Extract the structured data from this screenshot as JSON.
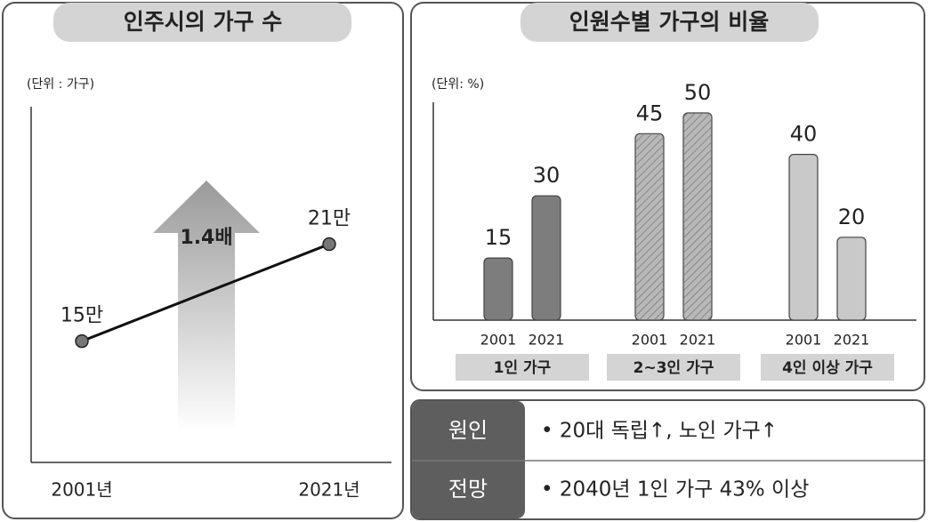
{
  "chart_data": [
    {
      "type": "line",
      "title": "인주시의 가구 수",
      "unit_label": "(단위 : 가구)",
      "categories": [
        "2001년",
        "2021년"
      ],
      "values": [
        150000,
        210000
      ],
      "value_labels": [
        "15만",
        "21만"
      ],
      "annotation": "1.4배",
      "color": "#111111",
      "ylim": [
        75000,
        295000
      ]
    },
    {
      "type": "bar",
      "title": "인원수별 가구의 비율",
      "unit_label": "(단위: %)",
      "categories": [
        "1인 가구",
        "2~3인 가구",
        "4인 이상 가구"
      ],
      "colors": [
        "#7d7d7d",
        "#b8b8b8",
        "#c9c9c9"
      ],
      "series": [
        {
          "name": "2001",
          "values": [
            15,
            45,
            40
          ]
        },
        {
          "name": "2021",
          "values": [
            30,
            50,
            20
          ]
        }
      ],
      "ylim": [
        0,
        50
      ]
    }
  ],
  "table": {
    "rows": [
      {
        "head": "원인",
        "text": "• 20대 독립↑, 노인 가구↑"
      },
      {
        "head": "전망",
        "text": "• 2040년 1인 가구 43% 이상"
      }
    ]
  }
}
